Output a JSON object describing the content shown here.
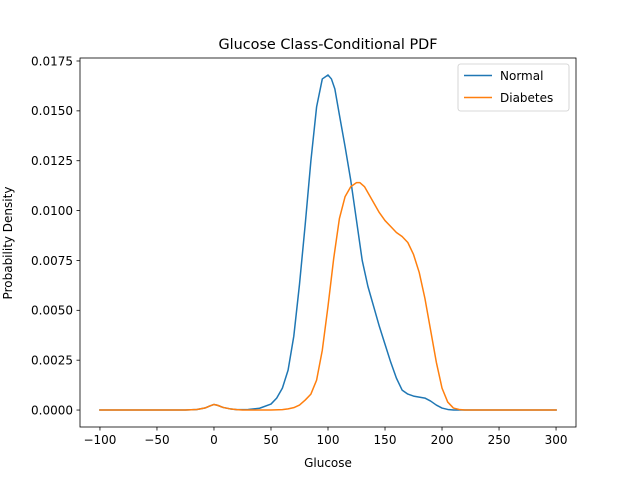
{
  "chart_data": {
    "type": "line",
    "title": "Glucose Class-Conditional PDF",
    "xlabel": "Glucose",
    "ylabel": "Probability Density",
    "xlim": [
      -117.5,
      317.5
    ],
    "ylim": [
      -0.00085,
      0.01765
    ],
    "xticks": [
      -100,
      -50,
      0,
      50,
      100,
      150,
      200,
      250,
      300
    ],
    "xtick_labels": [
      "−100",
      "−50",
      "0",
      "50",
      "100",
      "150",
      "200",
      "250",
      "300"
    ],
    "yticks": [
      0.0,
      0.0025,
      0.005,
      0.0075,
      0.01,
      0.0125,
      0.015,
      0.0175
    ],
    "ytick_labels": [
      "0.0000",
      "0.0025",
      "0.0050",
      "0.0075",
      "0.0100",
      "0.0125",
      "0.0150",
      "0.0175"
    ],
    "grid": false,
    "legend_position": "top-right",
    "series": [
      {
        "name": "Normal",
        "color": "#1f77b4",
        "x": [
          -100,
          -50,
          -25,
          -15,
          -8,
          -3,
          0,
          3,
          8,
          15,
          20,
          25,
          30,
          40,
          50,
          55,
          60,
          65,
          70,
          75,
          80,
          85,
          90,
          95,
          100,
          103,
          106,
          110,
          115,
          120,
          125,
          130,
          135,
          140,
          145,
          150,
          155,
          160,
          165,
          170,
          175,
          180,
          185,
          190,
          195,
          200,
          205,
          210,
          220,
          240,
          300
        ],
        "y": [
          0.0,
          0.0,
          0.0,
          3e-05,
          0.0001,
          0.00022,
          0.00028,
          0.00024,
          0.00013,
          5e-05,
          2e-05,
          2e-05,
          3e-05,
          9e-05,
          0.0003,
          0.0006,
          0.0011,
          0.002,
          0.0037,
          0.0063,
          0.0093,
          0.0125,
          0.0152,
          0.0166,
          0.0168,
          0.0166,
          0.0161,
          0.0148,
          0.0132,
          0.0115,
          0.0095,
          0.0075,
          0.0062,
          0.0052,
          0.0042,
          0.0033,
          0.0024,
          0.0016,
          0.001,
          0.0008,
          0.0007,
          0.00065,
          0.0006,
          0.00045,
          0.00025,
          0.0001,
          3e-05,
          0.0,
          0.0,
          0.0,
          0.0
        ]
      },
      {
        "name": "Diabetes",
        "color": "#ff7f0e",
        "x": [
          -100,
          -50,
          -25,
          -15,
          -8,
          -3,
          0,
          3,
          8,
          15,
          20,
          25,
          30,
          40,
          50,
          60,
          65,
          70,
          75,
          80,
          85,
          90,
          95,
          100,
          105,
          110,
          115,
          120,
          125,
          128,
          132,
          136,
          140,
          145,
          150,
          155,
          160,
          165,
          170,
          175,
          180,
          185,
          190,
          195,
          200,
          205,
          210,
          215,
          220,
          230,
          300
        ],
        "y": [
          0.0,
          0.0,
          0.0,
          3e-05,
          0.0001,
          0.00022,
          0.00028,
          0.00024,
          0.00013,
          5e-05,
          2e-05,
          0.0,
          0.0,
          0.0,
          0.0,
          2e-05,
          6e-05,
          0.00012,
          0.00025,
          0.0005,
          0.0008,
          0.0015,
          0.003,
          0.0052,
          0.0076,
          0.0096,
          0.0107,
          0.0112,
          0.0114,
          0.0114,
          0.0112,
          0.0108,
          0.0104,
          0.0099,
          0.0095,
          0.0092,
          0.0089,
          0.0087,
          0.0084,
          0.0078,
          0.0069,
          0.0056,
          0.004,
          0.0024,
          0.0011,
          0.0004,
          0.0001,
          3e-05,
          0.0,
          0.0,
          0.0
        ]
      }
    ]
  }
}
